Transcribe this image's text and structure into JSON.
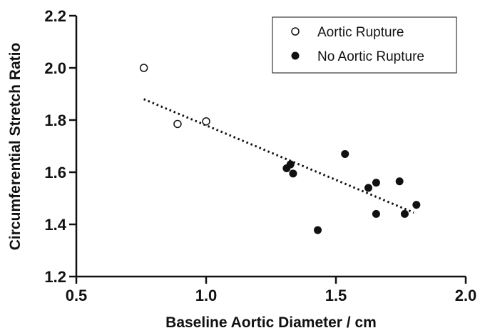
{
  "chart_data": {
    "type": "scatter",
    "title": "",
    "xlabel": "Baseline Aortic Diameter / cm",
    "ylabel": "Circumferential Stretch Ratio",
    "xlim": [
      0.5,
      2.0
    ],
    "ylim": [
      1.2,
      2.2
    ],
    "xticks": [
      0.5,
      1.0,
      1.5,
      2.0
    ],
    "xtick_labels": [
      "0.5",
      "1.0",
      "1.5",
      "2.0"
    ],
    "yticks": [
      1.2,
      1.4,
      1.6,
      1.8,
      2.0,
      2.2
    ],
    "ytick_labels": [
      "1.2",
      "1.4",
      "1.6",
      "1.8",
      "2.0",
      "2.2"
    ],
    "grid": false,
    "legend_position": "top-right",
    "series": [
      {
        "name": "Aortic Rupture",
        "marker": "open-circle",
        "color": "#111111",
        "points": [
          {
            "x": 0.76,
            "y": 2.0
          },
          {
            "x": 0.89,
            "y": 1.785
          },
          {
            "x": 1.0,
            "y": 1.795
          }
        ]
      },
      {
        "name": "No Aortic Rupture",
        "marker": "filled-circle",
        "color": "#111111",
        "points": [
          {
            "x": 1.31,
            "y": 1.615
          },
          {
            "x": 1.325,
            "y": 1.63
          },
          {
            "x": 1.335,
            "y": 1.595
          },
          {
            "x": 1.43,
            "y": 1.378
          },
          {
            "x": 1.535,
            "y": 1.67
          },
          {
            "x": 1.625,
            "y": 1.54
          },
          {
            "x": 1.655,
            "y": 1.56
          },
          {
            "x": 1.655,
            "y": 1.44
          },
          {
            "x": 1.745,
            "y": 1.565
          },
          {
            "x": 1.765,
            "y": 1.44
          },
          {
            "x": 1.81,
            "y": 1.475
          }
        ]
      }
    ],
    "trendline": {
      "style": "dotted",
      "x": [
        0.76,
        1.8
      ],
      "y": [
        1.88,
        1.445
      ]
    }
  }
}
